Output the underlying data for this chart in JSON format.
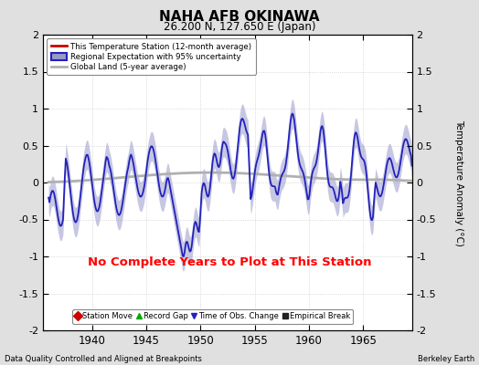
{
  "title": "NAHA AFB OKINAWA",
  "subtitle": "26.200 N, 127.650 E (Japan)",
  "ylabel": "Temperature Anomaly (°C)",
  "xlabel_left": "Data Quality Controlled and Aligned at Breakpoints",
  "xlabel_right": "Berkeley Earth",
  "no_data_text": "No Complete Years to Plot at This Station",
  "ylim": [
    -2,
    2
  ],
  "xlim": [
    1935.5,
    1969.5
  ],
  "yticks": [
    -2,
    -1.5,
    -1,
    -0.5,
    0,
    0.5,
    1,
    1.5,
    2
  ],
  "xticks": [
    1940,
    1945,
    1950,
    1955,
    1960,
    1965
  ],
  "background_color": "#e0e0e0",
  "plot_background": "#ffffff",
  "regional_line_color": "#2222bb",
  "regional_fill_color": "#9999cc",
  "global_line_color": "#b0b0b0",
  "station_line_color": "#cc0000",
  "grid_color": "#cccccc",
  "legend1_entries": [
    {
      "label": "This Temperature Station (12-month average)",
      "color": "#cc0000"
    },
    {
      "label": "Regional Expectation with 95% uncertainty",
      "color": "#2222bb",
      "fill": "#9999cc"
    },
    {
      "label": "Global Land (5-year average)",
      "color": "#b0b0b0"
    }
  ],
  "legend2_entries": [
    {
      "label": "Station Move",
      "marker": "D",
      "color": "#cc0000"
    },
    {
      "label": "Record Gap",
      "marker": "^",
      "color": "#00aa00"
    },
    {
      "label": "Time of Obs. Change",
      "marker": "v",
      "color": "#2222bb"
    },
    {
      "label": "Empirical Break",
      "marker": "s",
      "color": "#222222"
    }
  ]
}
